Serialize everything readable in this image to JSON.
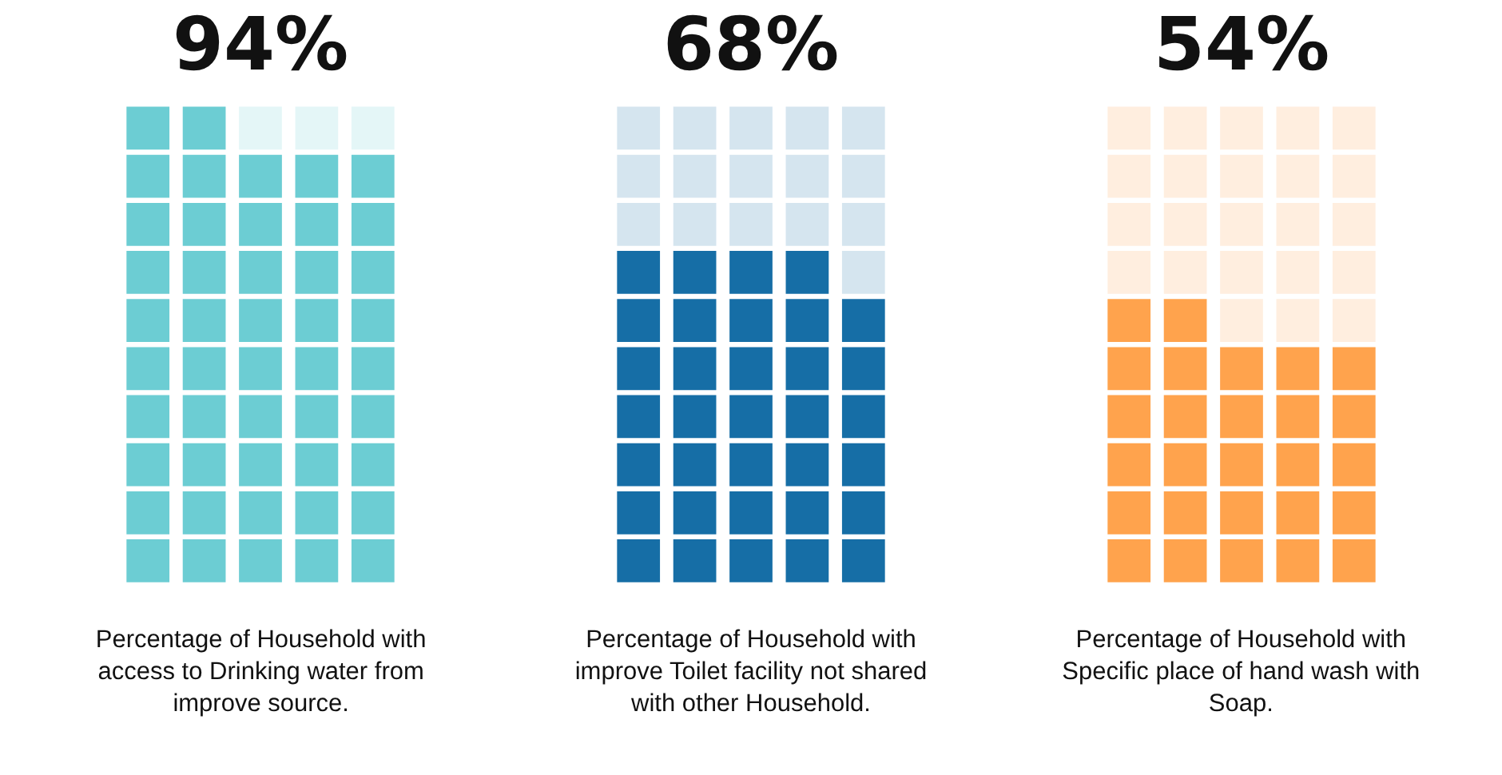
{
  "chart_data": [
    {
      "type": "other",
      "values": [
        94
      ],
      "value_labels": [
        "94%"
      ],
      "color": "#6ccdd3",
      "xlabel": "Percentage of Household with access to Drinking water from improve source."
    },
    {
      "type": "other",
      "values": [
        68
      ],
      "value_labels": [
        "68%"
      ],
      "color": "#166ea6",
      "xlabel": "Percentage of Household with improve Toilet facility not shared with other Household."
    },
    {
      "type": "other",
      "values": [
        54
      ],
      "value_labels": [
        "54%"
      ],
      "color": "#ffa34d",
      "xlabel": "Percentage of Household with Specific place of hand wash with Soap."
    }
  ]
}
